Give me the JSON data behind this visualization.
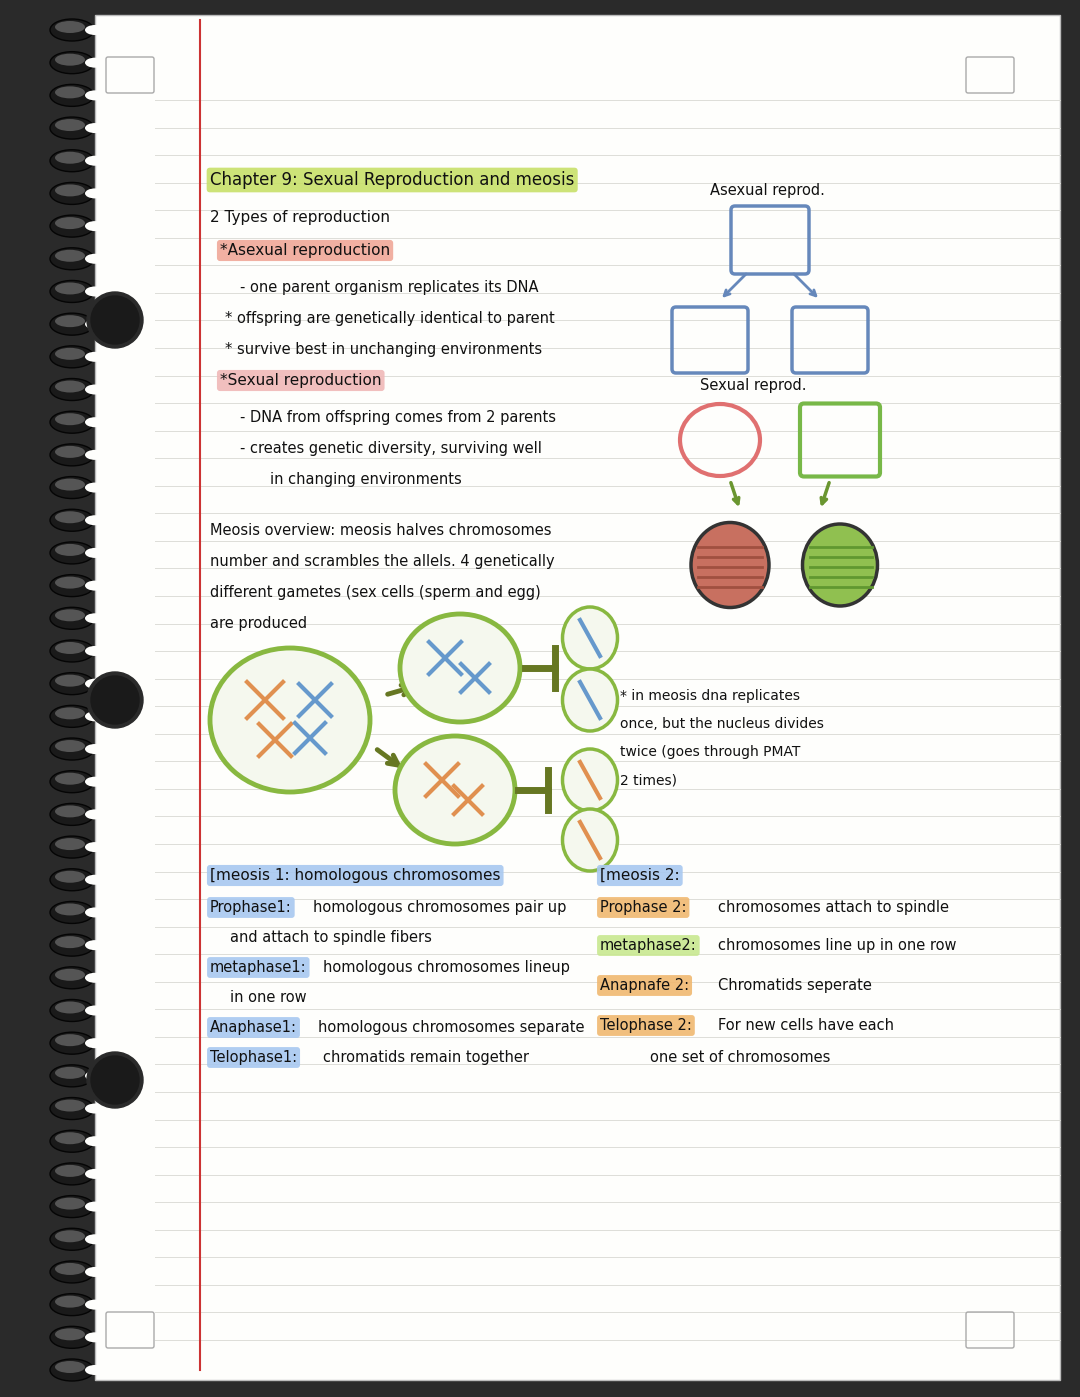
{
  "bg_color": "#2a2a2a",
  "page_color": "#fefefc",
  "line_color": "#ddddd8",
  "title": "Chapter 9: Sexual Reproduction and meosis",
  "title_highlight": "#c8e06a",
  "section1_title": "2 Types of reproduction",
  "section1_highlight": "#a8c8f0",
  "asexual_label": "*Asexual reproduction",
  "asexual_highlight": "#f0a898",
  "sexual_label": "*Sexual reproduction",
  "sexual_highlight": "#f0b8b8",
  "meosis1_header": "[meosis 1: homologous chromosomes",
  "meosis1_header_highlight": "#a8c8f0",
  "meosis2_header": "[meosis 2:",
  "meosis2_header_highlight": "#a8c8f0",
  "prophase1_highlight": "#a8c8f0",
  "metaphase1_highlight": "#a8c8f0",
  "anaphase1_highlight": "#a8c8f0",
  "telophase1_highlight": "#a8c8f0",
  "prophase2_highlight": "#f0b870",
  "metaphase2_highlight": "#c8e890",
  "anaphase2_highlight": "#f0b870",
  "telophase2_highlight": "#f0b870"
}
